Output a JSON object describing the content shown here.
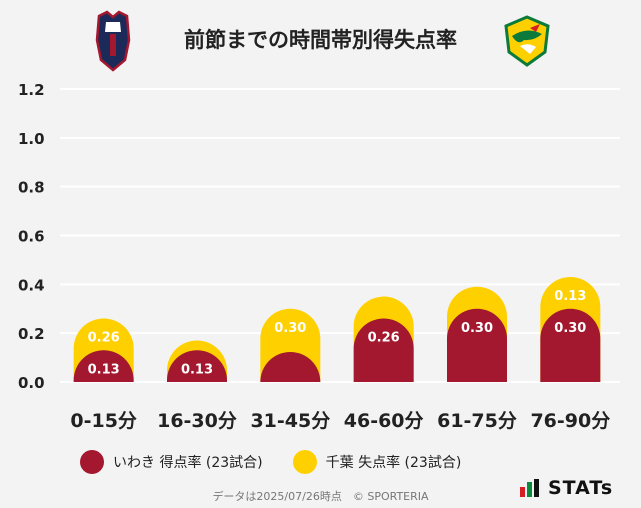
{
  "title": "前節までの時間帯別得失点率",
  "colors": {
    "iwaki": "#a3172f",
    "chiba": "#ffd000",
    "grid": "#ffffff",
    "background": "#f3f3f3"
  },
  "chart_data": {
    "type": "bar",
    "categories": [
      "0-15分",
      "16-30分",
      "31-45分",
      "46-60分",
      "61-75分",
      "76-90分"
    ],
    "series": [
      {
        "name": "いわき 得点率 (23試合)",
        "values": [
          0.13,
          0.13,
          0.09,
          0.26,
          0.3,
          0.3
        ],
        "labels": [
          "0.13",
          "0.13",
          "",
          "0.26",
          "0.30",
          "0.30"
        ],
        "color": "#a3172f"
      },
      {
        "name": "千葉 失点率 (23試合)",
        "values": [
          0.26,
          0.17,
          0.3,
          0.35,
          0.39,
          0.13
        ],
        "labels": [
          "0.26",
          "",
          "0.30",
          "",
          "",
          "0.13"
        ],
        "color": "#ffd000",
        "stack_on_first_at_index": [
          5
        ]
      }
    ],
    "y_ticks": [
      "0.0",
      "0.2",
      "0.4",
      "0.6",
      "0.8",
      "1.0",
      "1.2"
    ],
    "ylim": [
      0,
      1.2
    ],
    "grid": true,
    "legend_position": "bottom"
  },
  "legend": {
    "iwaki_label": "いわき 得点率 (23試合)",
    "chiba_label": "千葉 失点率 (23試合)"
  },
  "footer": "データは2025/07/26時点　© SPORTERIA",
  "brand": "STATs",
  "logos": {
    "left_text": "IWAKI FC"
  }
}
